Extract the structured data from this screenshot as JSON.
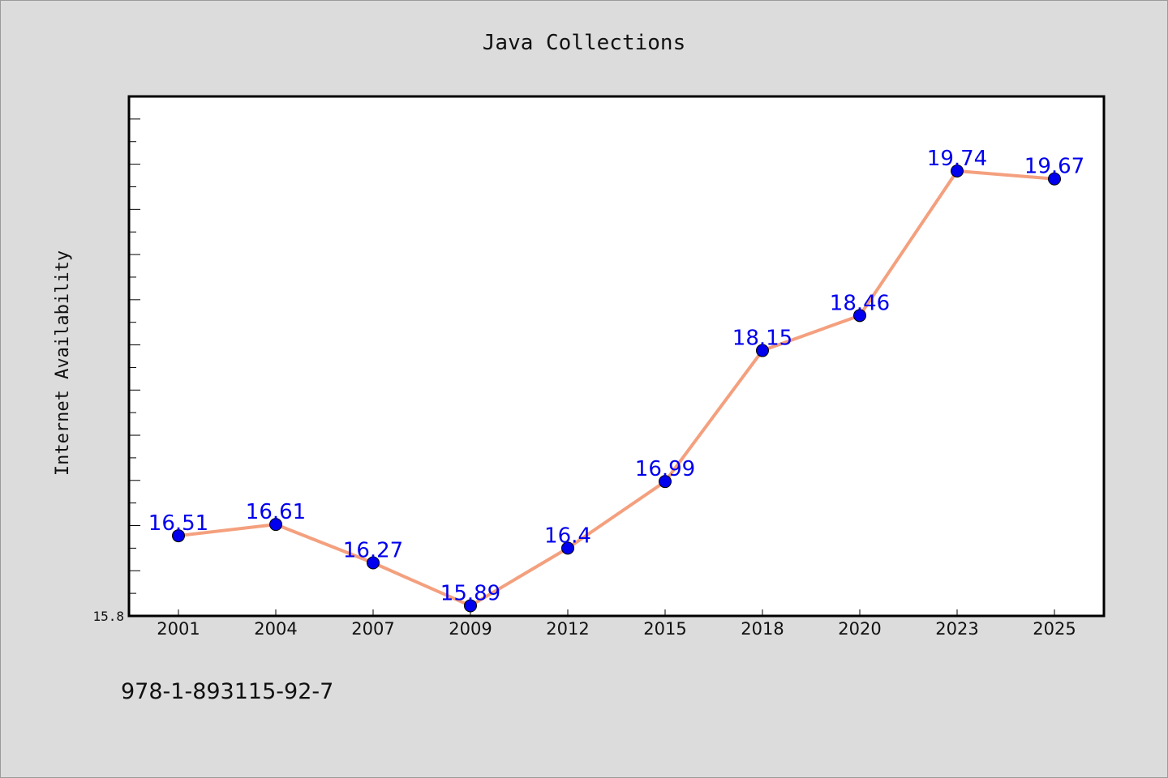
{
  "chart_data": {
    "type": "line",
    "title": "Java Collections",
    "xlabel": "",
    "ylabel": "Internet Availability",
    "categories": [
      "2001",
      "2004",
      "2007",
      "2009",
      "2012",
      "2015",
      "2018",
      "2020",
      "2023",
      "2025"
    ],
    "series": [
      {
        "values": [
          16.51,
          16.61,
          16.27,
          15.89,
          16.4,
          16.99,
          18.15,
          18.46,
          19.74,
          19.67
        ],
        "line_color": "#f4a07e",
        "marker_color": "#0000ee"
      }
    ],
    "ylim": [
      15.8,
      20.4
    ],
    "yticks_labeled": [
      "15.8"
    ],
    "grid": false,
    "legend": "none",
    "data_label_color": "#0000ee"
  },
  "footnote": "978-1-893115-92-7"
}
